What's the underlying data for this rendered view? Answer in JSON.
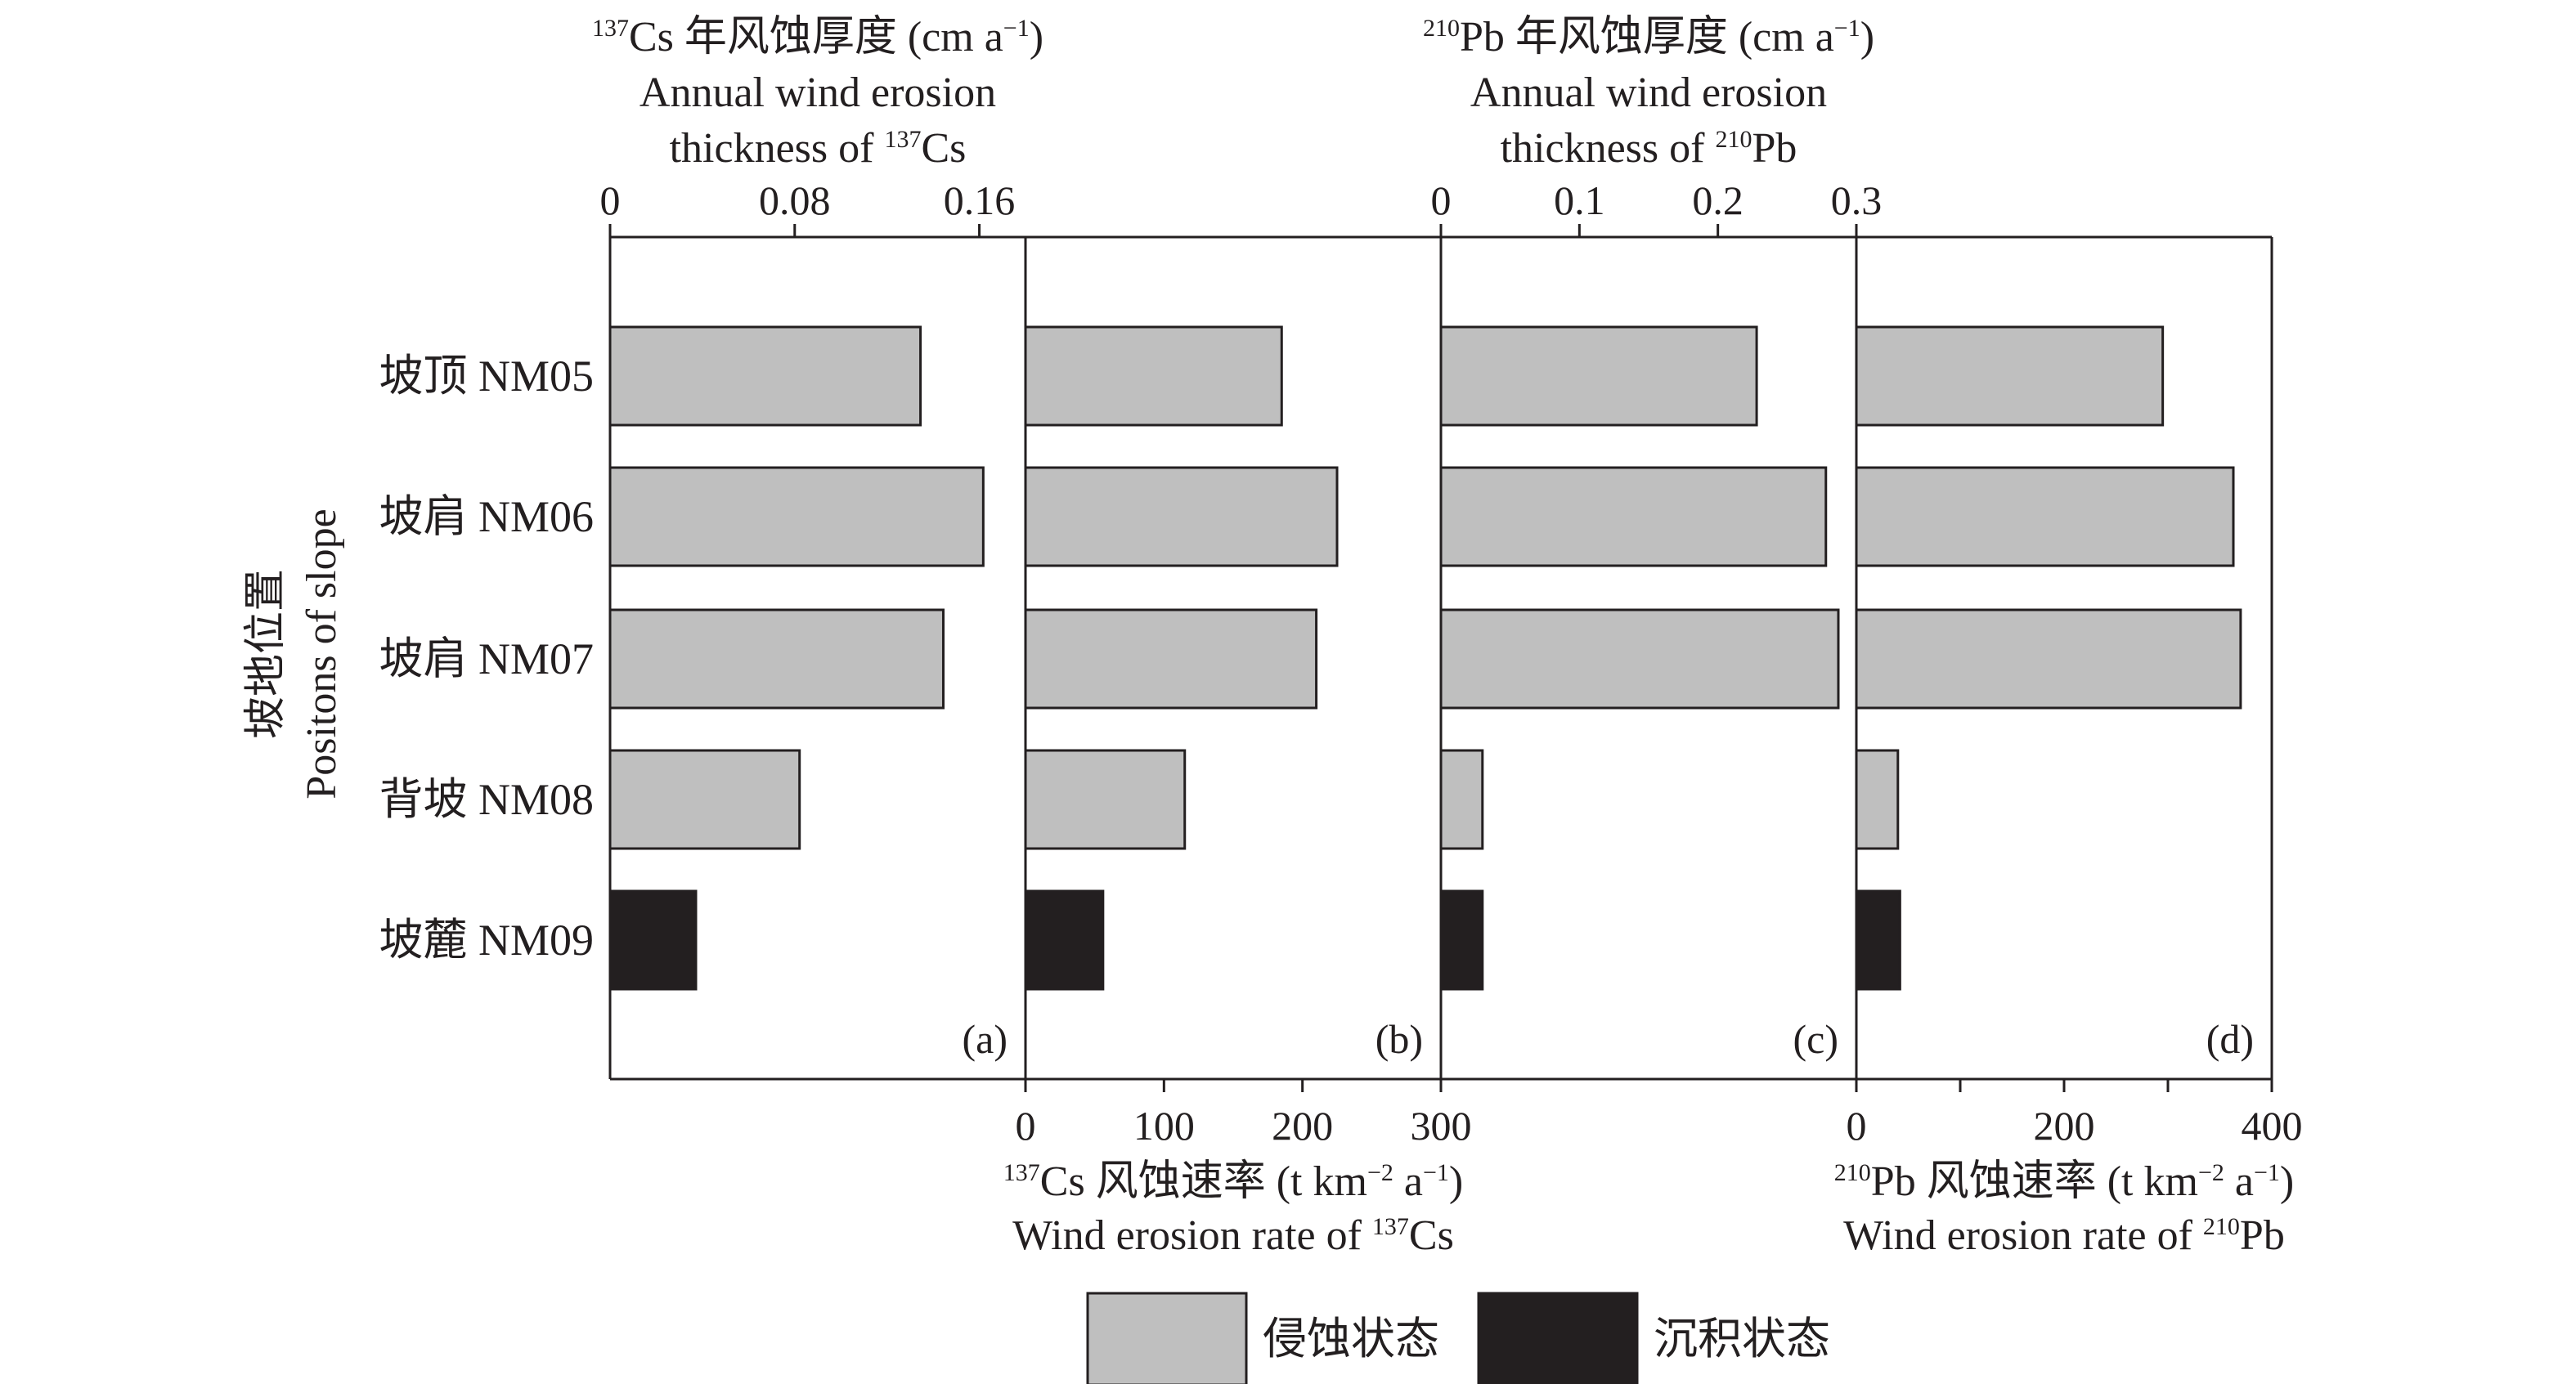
{
  "chart_data": {
    "type": "bar",
    "orientation": "horizontal",
    "categories": [
      "坡顶 NM05",
      "坡肩 NM06",
      "坡肩 NM07",
      "背坡 NM08",
      "坡麓 NM09"
    ],
    "y_axis_title": {
      "zh": "坡地位置",
      "en": "Positons of slope"
    },
    "legend": {
      "placement": "bottom",
      "items": [
        {
          "label": "侵蚀状态",
          "color": "#bfbfbf"
        },
        {
          "label": "沉积状态",
          "color": "#231f20"
        }
      ]
    },
    "panels": [
      {
        "label": "(a)",
        "axis_position": "top",
        "axis_title": {
          "isotope": "137",
          "zh_pre": "Cs 年风蚀厚度 (cm a",
          "unit_sup": "−1",
          "zh_post": ")",
          "en_line1": "Annual wind erosion",
          "en_pre": "thickness of ",
          "en_sup": "137",
          "en_post": "Cs"
        },
        "xlim": [
          0,
          0.18
        ],
        "ticks": [
          0,
          0.08,
          0.16
        ],
        "tick_labels": [
          "0",
          "0.08",
          "0.16"
        ],
        "values": [
          0.1345,
          0.1617,
          0.1444,
          0.0821,
          0.0372
        ],
        "states": [
          "erosion",
          "erosion",
          "erosion",
          "erosion",
          "deposition"
        ]
      },
      {
        "label": "(b)",
        "axis_position": "bottom",
        "axis_title": {
          "isotope": "137",
          "zh_pre": "Cs 风蚀速率 (t km",
          "unit_sup": "−2",
          "zh_mid": " a",
          "unit_sup2": "−1",
          "zh_post": ")",
          "en_pre": "Wind erosion rate of ",
          "en_sup": "137",
          "en_post": "Cs"
        },
        "xlim": [
          0,
          300
        ],
        "ticks": [
          0,
          100,
          200,
          300
        ],
        "tick_labels": [
          "0",
          "100",
          "200",
          "300"
        ],
        "values": [
          185,
          225,
          210,
          115,
          56
        ],
        "states": [
          "erosion",
          "erosion",
          "erosion",
          "erosion",
          "deposition"
        ]
      },
      {
        "label": "(c)",
        "axis_position": "top",
        "axis_title": {
          "isotope": "210",
          "zh_pre": "Pb 年风蚀厚度 (cm a",
          "unit_sup": "−1",
          "zh_post": ")",
          "en_line1": "Annual wind erosion",
          "en_pre": "thickness of ",
          "en_sup": "210",
          "en_post": "Pb"
        },
        "xlim": [
          0,
          0.3
        ],
        "ticks": [
          0,
          0.1,
          0.2,
          0.3
        ],
        "tick_labels": [
          "0",
          "0.1",
          "0.2",
          "0.3"
        ],
        "values": [
          0.228,
          0.278,
          0.287,
          0.03,
          0.03
        ],
        "states": [
          "erosion",
          "erosion",
          "erosion",
          "erosion",
          "deposition"
        ]
      },
      {
        "label": "(d)",
        "axis_position": "bottom",
        "axis_title": {
          "isotope": "210",
          "zh_pre": "Pb 风蚀速率 (t km",
          "unit_sup": "−2",
          "zh_mid": " a",
          "unit_sup2": "−1",
          "zh_post": ")",
          "en_pre": "Wind erosion rate of ",
          "en_sup": "210",
          "en_post": "Pb"
        },
        "xlim": [
          0,
          400
        ],
        "ticks": [
          0,
          200,
          400
        ],
        "minor_ticks": [
          100,
          300
        ],
        "tick_labels": [
          "0",
          "200",
          "400"
        ],
        "values": [
          295,
          363,
          370,
          40,
          42
        ],
        "states": [
          "erosion",
          "erosion",
          "erosion",
          "erosion",
          "deposition"
        ]
      }
    ]
  }
}
